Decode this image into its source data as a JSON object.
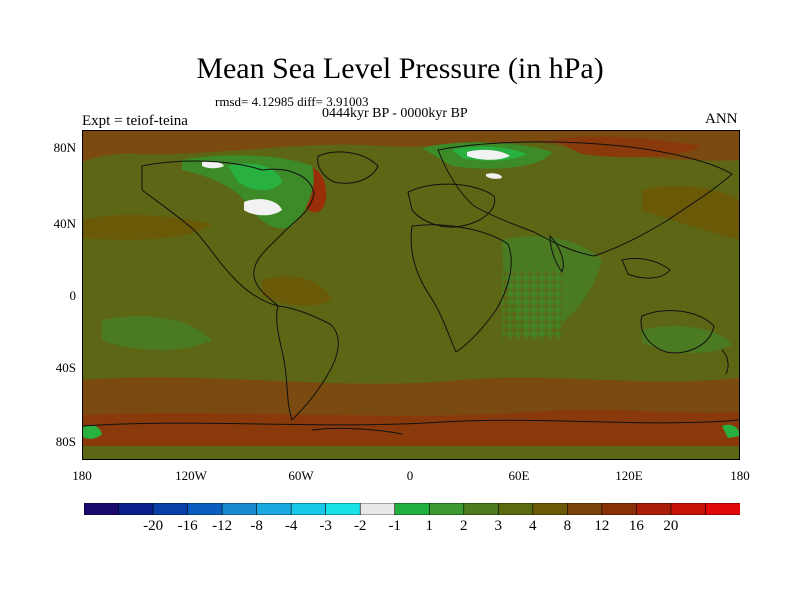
{
  "title": "Mean Sea Level Pressure (in hPa)",
  "stats": "rmsd= 4.12985  diff= 3.91003",
  "period": "0444kyr BP - 0000kyr BP",
  "experiment": "Expt = teiof-teina",
  "season": "ANN",
  "lat_labels": [
    "80N",
    "40N",
    "0",
    "40S",
    "80S"
  ],
  "lon_labels": [
    "180",
    "120W",
    "60W",
    "0",
    "60E",
    "120E",
    "180"
  ],
  "colorbar": {
    "colors": [
      "#1a0a6e",
      "#0b1f8c",
      "#0a3fa8",
      "#0a5ec0",
      "#1a8ad0",
      "#1aa8e0",
      "#18c8e8",
      "#1ae0e8",
      "#e8e8e8",
      "#20b040",
      "#3a9a30",
      "#4e7a20",
      "#5a6a10",
      "#6a5a08",
      "#7a4508",
      "#8a3008",
      "#a81e08",
      "#c81008",
      "#e00808"
    ],
    "labels": [
      "-20",
      "-16",
      "-12",
      "-8",
      "-4",
      "-3",
      "-2",
      "-1",
      "1",
      "2",
      "3",
      "4",
      "8",
      "12",
      "16",
      "20"
    ]
  },
  "colors": {
    "base": "#5c6614",
    "warm": "#7a4a10",
    "hot": "#9a2e08",
    "green": "#3c8a28",
    "brightgreen": "#28b040",
    "white": "#f2f2f2"
  }
}
